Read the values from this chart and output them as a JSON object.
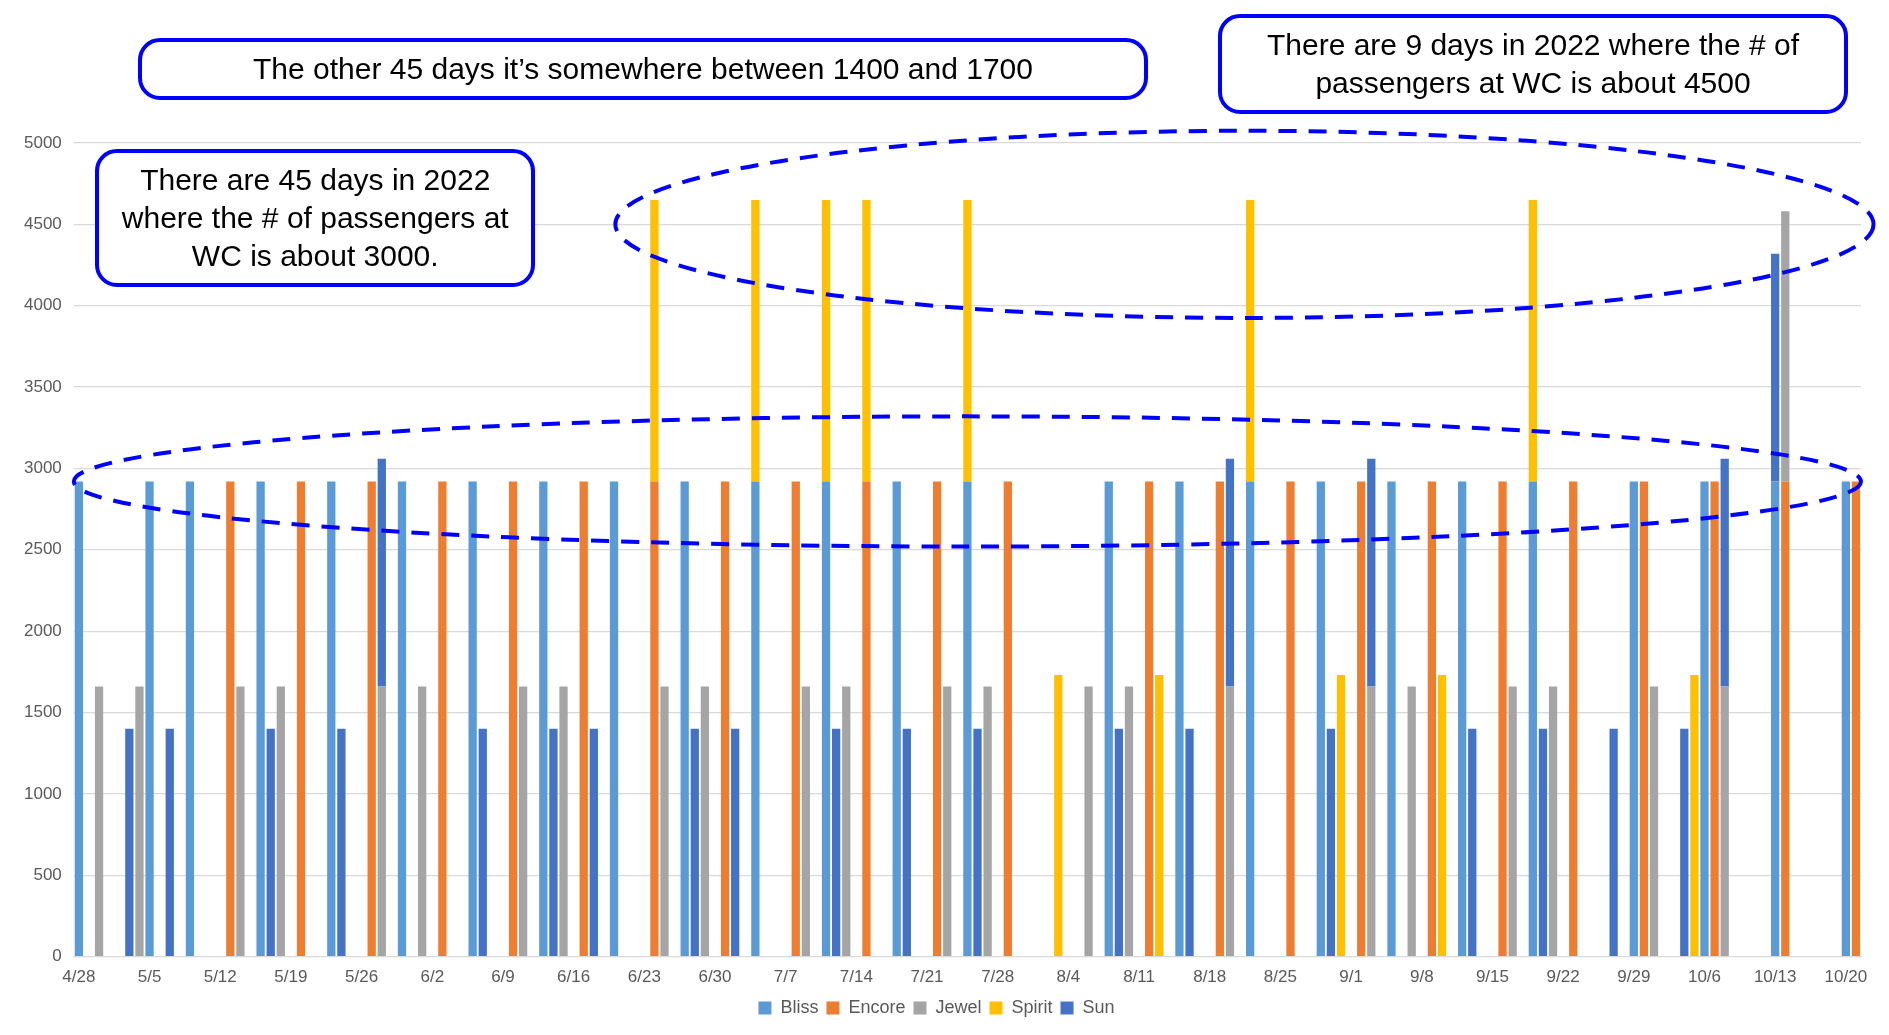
{
  "chart_data": {
    "type": "bar",
    "stacked": true,
    "grid": "y",
    "legend": "bottom",
    "categories": [
      "4/28",
      null,
      null,
      null,
      null,
      null,
      null,
      "5/5",
      null,
      null,
      null,
      null,
      null,
      null,
      "5/12",
      null,
      null,
      null,
      null,
      null,
      null,
      "5/19",
      null,
      null,
      null,
      null,
      null,
      null,
      "5/26",
      null,
      null,
      null,
      null,
      null,
      null,
      "6/2",
      null,
      null,
      null,
      null,
      null,
      null,
      "6/9",
      null,
      null,
      null,
      null,
      null,
      null,
      "6/16",
      null,
      null,
      null,
      null,
      null,
      null,
      "6/23",
      null,
      null,
      null,
      null,
      null,
      null,
      "6/30",
      null,
      null,
      null,
      null,
      null,
      null,
      "7/7",
      null,
      null,
      null,
      null,
      null,
      null,
      "7/14",
      null,
      null,
      null,
      null,
      null,
      null,
      "7/21",
      null,
      null,
      null,
      null,
      null,
      null,
      "7/28",
      null,
      null,
      null,
      null,
      null,
      null,
      "8/4",
      null,
      null,
      null,
      null,
      null,
      null,
      "8/11",
      null,
      null,
      null,
      null,
      null,
      null,
      "8/18",
      null,
      null,
      null,
      null,
      null,
      null,
      "8/25",
      null,
      null,
      null,
      null,
      null,
      null,
      "9/1",
      null,
      null,
      null,
      null,
      null,
      null,
      "9/8",
      null,
      null,
      null,
      null,
      null,
      null,
      "9/15",
      null,
      null,
      null,
      null,
      null,
      null,
      "9/22",
      null,
      null,
      null,
      null,
      null,
      null,
      "9/29",
      null,
      null,
      null,
      null,
      null,
      null,
      "10/6",
      null,
      null,
      null,
      null,
      null,
      null,
      "10/13",
      null,
      null,
      null,
      null,
      null,
      null,
      "10/20",
      null
    ],
    "ylim": [
      0,
      5000
    ],
    "yticks": [
      0,
      500,
      1000,
      1500,
      2000,
      2500,
      3000,
      3500,
      4000,
      4500,
      5000
    ],
    "series": [
      {
        "name": "Bliss",
        "color": "#5b9bd5",
        "values": [
          2920,
          null,
          null,
          null,
          null,
          null,
          null,
          2920,
          null,
          null,
          null,
          2920,
          null,
          null,
          null,
          null,
          null,
          null,
          2920,
          null,
          null,
          null,
          null,
          null,
          null,
          2920,
          null,
          null,
          null,
          null,
          null,
          null,
          2920,
          null,
          null,
          null,
          null,
          null,
          null,
          2920,
          null,
          null,
          null,
          null,
          null,
          null,
          2920,
          null,
          null,
          null,
          null,
          null,
          null,
          2920,
          null,
          null,
          null,
          null,
          null,
          null,
          2920,
          null,
          null,
          null,
          null,
          null,
          null,
          2920,
          null,
          null,
          null,
          null,
          null,
          null,
          2920,
          null,
          null,
          null,
          null,
          null,
          null,
          2920,
          null,
          null,
          null,
          null,
          null,
          null,
          2920,
          null,
          null,
          null,
          null,
          null,
          null,
          null,
          null,
          null,
          null,
          null,
          null,
          null,
          2920,
          null,
          null,
          null,
          null,
          null,
          null,
          2920,
          null,
          null,
          null,
          null,
          null,
          null,
          2920,
          null,
          null,
          null,
          null,
          null,
          null,
          2920,
          null,
          null,
          null,
          null,
          null,
          null,
          2920,
          null,
          null,
          null,
          null,
          null,
          null,
          2920,
          null,
          null,
          null,
          null,
          null,
          null,
          2920,
          null,
          null,
          null,
          null,
          null,
          null,
          null,
          null,
          null,
          2920,
          null,
          null,
          null,
          null,
          null,
          null,
          2920,
          null,
          null,
          null,
          null,
          null,
          null,
          2920,
          null,
          null,
          null,
          null,
          null,
          null,
          2920,
          null
        ]
      },
      {
        "name": "Encore",
        "color": "#ed7d31",
        "values": [
          null,
          null,
          null,
          null,
          null,
          null,
          null,
          null,
          null,
          null,
          null,
          null,
          null,
          null,
          null,
          2920,
          null,
          null,
          null,
          null,
          null,
          null,
          2920,
          null,
          null,
          null,
          null,
          null,
          null,
          2920,
          null,
          null,
          null,
          null,
          null,
          null,
          2920,
          null,
          null,
          null,
          null,
          null,
          null,
          2920,
          null,
          null,
          null,
          null,
          null,
          null,
          2920,
          null,
          null,
          null,
          null,
          null,
          null,
          2920,
          null,
          null,
          null,
          null,
          null,
          null,
          2920,
          null,
          null,
          null,
          null,
          null,
          null,
          2920,
          null,
          null,
          null,
          null,
          null,
          null,
          2920,
          null,
          null,
          null,
          null,
          null,
          null,
          2920,
          null,
          null,
          null,
          null,
          null,
          null,
          2920,
          null,
          null,
          null,
          null,
          null,
          null,
          null,
          null,
          null,
          null,
          null,
          null,
          null,
          2920,
          null,
          null,
          null,
          null,
          null,
          null,
          2920,
          null,
          null,
          null,
          null,
          null,
          null,
          2920,
          null,
          null,
          null,
          null,
          null,
          null,
          2920,
          null,
          null,
          null,
          null,
          null,
          null,
          2920,
          null,
          null,
          null,
          null,
          null,
          null,
          2920,
          null,
          null,
          null,
          null,
          null,
          null,
          2920,
          null,
          null,
          null,
          null,
          null,
          null,
          2920,
          null,
          null,
          null,
          null,
          null,
          null,
          2920,
          null,
          null,
          null,
          null,
          null,
          null,
          2920,
          null,
          null,
          null,
          null,
          null,
          null,
          2920
        ]
      },
      {
        "name": "Jewel",
        "color": "#a5a5a5",
        "values": [
          null,
          null,
          1660,
          null,
          null,
          null,
          1660,
          null,
          null,
          null,
          null,
          null,
          null,
          null,
          null,
          null,
          1660,
          null,
          null,
          null,
          1660,
          null,
          null,
          null,
          null,
          null,
          null,
          null,
          null,
          null,
          1660,
          null,
          null,
          null,
          1660,
          null,
          null,
          null,
          null,
          null,
          null,
          null,
          null,
          null,
          1660,
          null,
          null,
          null,
          1660,
          null,
          null,
          null,
          null,
          null,
          null,
          null,
          null,
          null,
          1660,
          null,
          null,
          null,
          1660,
          null,
          null,
          null,
          null,
          null,
          null,
          null,
          null,
          null,
          1660,
          null,
          null,
          null,
          1660,
          null,
          null,
          null,
          null,
          null,
          null,
          null,
          null,
          null,
          1660,
          null,
          null,
          null,
          1660,
          null,
          null,
          null,
          null,
          null,
          null,
          null,
          null,
          null,
          1660,
          null,
          null,
          null,
          1660,
          null,
          null,
          null,
          null,
          null,
          null,
          null,
          null,
          null,
          1660,
          null,
          null,
          null,
          null,
          null,
          null,
          null,
          null,
          null,
          null,
          null,
          null,
          null,
          1660,
          null,
          null,
          null,
          1660,
          null,
          null,
          null,
          null,
          null,
          null,
          null,
          null,
          null,
          1660,
          null,
          null,
          null,
          1660,
          null,
          null,
          null,
          null,
          null,
          null,
          null,
          null,
          null,
          1660,
          null,
          null,
          null,
          null,
          null,
          null,
          1660,
          null,
          null,
          null,
          null,
          null,
          1660,
          null,
          null,
          null,
          null,
          null,
          null,
          null
        ]
      },
      {
        "name": "Spirit",
        "color": "#ffc000",
        "values": [
          null,
          null,
          null,
          null,
          null,
          null,
          null,
          null,
          null,
          null,
          null,
          null,
          null,
          null,
          null,
          null,
          null,
          null,
          null,
          null,
          null,
          null,
          null,
          null,
          null,
          null,
          null,
          null,
          null,
          null,
          null,
          null,
          null,
          null,
          null,
          null,
          null,
          null,
          null,
          null,
          null,
          null,
          null,
          null,
          null,
          null,
          null,
          null,
          null,
          null,
          null,
          null,
          null,
          null,
          null,
          null,
          null,
          1730,
          null,
          null,
          null,
          null,
          null,
          null,
          null,
          null,
          null,
          1730,
          null,
          null,
          null,
          null,
          null,
          null,
          1730,
          null,
          null,
          null,
          1730,
          null,
          null,
          null,
          null,
          null,
          null,
          null,
          null,
          null,
          1730,
          null,
          null,
          null,
          null,
          null,
          null,
          null,
          null,
          1730,
          null,
          null,
          null,
          null,
          null,
          null,
          null,
          null,
          null,
          1730,
          null,
          null,
          null,
          null,
          null,
          null,
          null,
          null,
          1730,
          null,
          null,
          null,
          null,
          null,
          null,
          null,
          null,
          1730,
          null,
          null,
          null,
          null,
          null,
          null,
          null,
          null,
          null,
          1730,
          null,
          null,
          null,
          null,
          null,
          null,
          null,
          null,
          1730,
          null,
          null,
          null,
          null,
          null,
          null,
          null,
          null,
          null,
          null,
          null,
          null,
          null,
          null,
          null,
          1730,
          null,
          null,
          null,
          null,
          null,
          null,
          null,
          null,
          null,
          null,
          null,
          null,
          null,
          null,
          null,
          null
        ]
      },
      {
        "name": "Sun",
        "color": "#4472c4",
        "values": [
          null,
          null,
          null,
          null,
          null,
          1400,
          null,
          null,
          null,
          1400,
          null,
          null,
          null,
          null,
          null,
          null,
          null,
          null,
          null,
          1400,
          null,
          null,
          null,
          null,
          null,
          null,
          1400,
          null,
          null,
          null,
          1400,
          null,
          null,
          null,
          null,
          null,
          null,
          null,
          null,
          null,
          1400,
          null,
          null,
          null,
          null,
          null,
          null,
          1400,
          null,
          null,
          null,
          1400,
          null,
          null,
          null,
          null,
          null,
          null,
          null,
          null,
          null,
          1400,
          null,
          null,
          null,
          1400,
          null,
          null,
          null,
          null,
          null,
          null,
          null,
          null,
          null,
          1400,
          null,
          null,
          null,
          null,
          null,
          null,
          1400,
          null,
          null,
          null,
          null,
          null,
          null,
          1400,
          null,
          null,
          null,
          null,
          null,
          null,
          null,
          null,
          null,
          null,
          null,
          null,
          null,
          1400,
          null,
          null,
          null,
          null,
          null,
          null,
          1400,
          null,
          null,
          null,
          1400,
          null,
          null,
          null,
          null,
          null,
          null,
          null,
          null,
          null,
          1400,
          null,
          null,
          null,
          1400,
          null,
          null,
          null,
          null,
          null,
          null,
          null,
          null,
          null,
          1400,
          null,
          null,
          null,
          null,
          null,
          null,
          1400,
          null,
          null,
          null,
          null,
          null,
          null,
          1400,
          null,
          null,
          null,
          null,
          null,
          null,
          1400,
          null,
          null,
          null,
          1400,
          null,
          null,
          null,
          null,
          1400,
          null,
          null,
          null,
          null,
          null,
          null,
          null,
          null
        ]
      }
    ],
    "annotations": [
      "There are 45 days in 2022 where the # of passengers at WC is about 3000.",
      "There are 9 days in 2022 where the # of passengers at WC is about 4500",
      "The other 45 days it’s somewhere between 1400 and 1700"
    ]
  }
}
